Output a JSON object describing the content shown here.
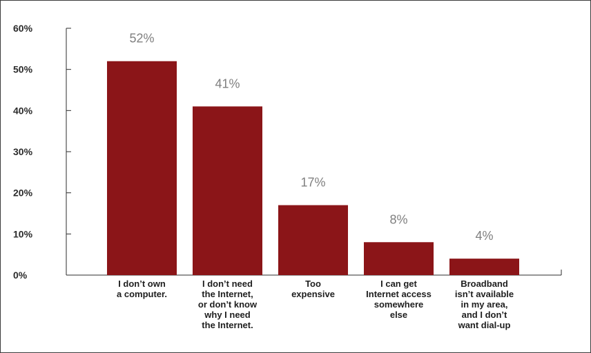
{
  "chart_data": {
    "type": "bar",
    "categories": [
      "I don’t own a computer.",
      "I don’t need the Internet, or don’t know why I need the Internet.",
      "Too expensive",
      "I can get Internet access somewhere else",
      "Broadband isn’t available in my area, and I don’t want dial-up"
    ],
    "category_lines": [
      [
        "I don’t own",
        "a computer."
      ],
      [
        "I don’t need",
        "the Internet,",
        "or don’t know",
        "why I need",
        "the Internet."
      ],
      [
        "Too",
        "expensive"
      ],
      [
        "I can get",
        "Internet access",
        "somewhere",
        "else"
      ],
      [
        "Broadband",
        "isn’t available",
        "in my area,",
        "and I don’t",
        "want dial-up"
      ]
    ],
    "values": [
      52,
      41,
      17,
      8,
      4
    ],
    "data_labels": [
      "52%",
      "41%",
      "17%",
      "8%",
      "4%"
    ],
    "yticks": [
      0,
      10,
      20,
      30,
      40,
      50,
      60
    ],
    "ytick_labels": [
      "0%",
      "10%",
      "20%",
      "30%",
      "40%",
      "50%",
      "60%"
    ],
    "ylim": [
      0,
      60
    ],
    "title": "",
    "xlabel": "",
    "ylabel": "",
    "grid": false,
    "colors": {
      "bar": "#8b1518",
      "axis": "#2b2b2b",
      "data_label": "#7f7f7f"
    }
  }
}
